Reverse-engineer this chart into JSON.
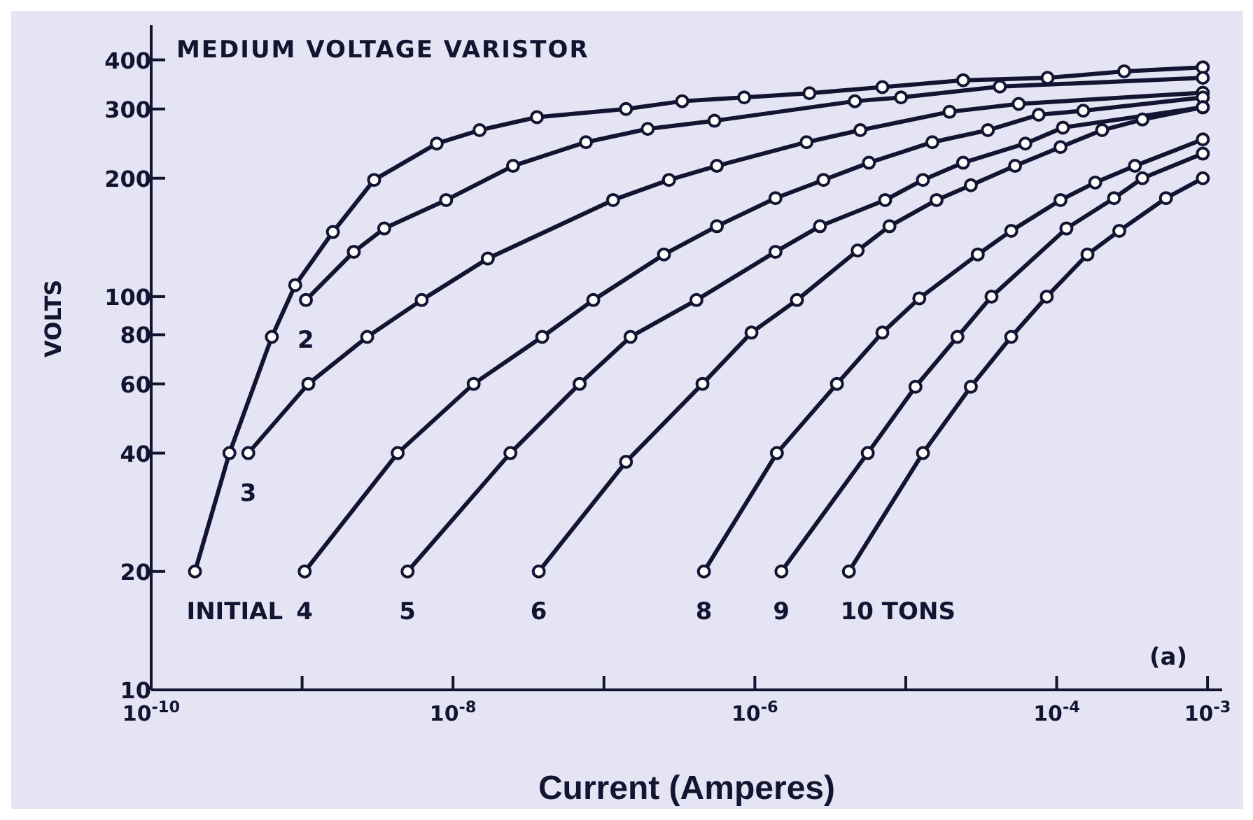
{
  "chart_data": {
    "type": "line",
    "title": "MEDIUM VOLTAGE VARISTOR",
    "xlabel": "Current (Amperes)",
    "ylabel": "VOLTS",
    "log": "xy",
    "marker": "circle",
    "line_style": "solid",
    "xlim": [
      1e-10,
      0.00125
    ],
    "ylim": [
      10,
      490
    ],
    "xticks": [
      {
        "value": 1e-10,
        "label": "10$^{-10}$"
      },
      {
        "value": 1e-09,
        "label": null
      },
      {
        "value": 1e-08,
        "label": "10$^{-8}$"
      },
      {
        "value": 1e-07,
        "label": null
      },
      {
        "value": 1e-06,
        "label": "10$^{-6}$"
      },
      {
        "value": 1e-05,
        "label": null
      },
      {
        "value": 0.0001,
        "label": "10$^{-4}$"
      },
      {
        "value": 0.001,
        "label": "10$^{-3}$"
      }
    ],
    "yticks": [
      10,
      20,
      40,
      60,
      80,
      100,
      200,
      300,
      400
    ],
    "series": [
      {
        "name": "INITIAL",
        "color": "#141432",
        "x": [
          1.95e-10,
          3.3e-10,
          6.3e-10,
          9e-10,
          1.6e-09,
          3e-09,
          7.8e-09,
          1.5e-08,
          3.6e-08,
          1.4e-07,
          3.3e-07,
          8.5e-07,
          2.3e-06,
          7e-06,
          2.4e-05,
          8.7e-05,
          0.00028,
          0.00093
        ],
        "values": [
          20,
          40,
          79,
          107,
          146,
          198,
          245,
          265,
          286,
          300,
          314,
          321,
          329,
          341,
          355,
          360,
          374,
          383
        ]
      },
      {
        "name": "2",
        "color": "#141432",
        "x": [
          1.06e-09,
          2.2e-09,
          3.5e-09,
          9e-09,
          2.5e-08,
          7.6e-08,
          1.95e-07,
          5.4e-07,
          4.6e-06,
          9.3e-06,
          4.2e-05,
          0.00093
        ],
        "values": [
          98,
          130,
          149,
          176,
          215,
          247,
          267,
          280,
          314,
          321,
          342,
          360
        ]
      },
      {
        "name": "3",
        "color": "#141432",
        "x": [
          4.4e-10,
          1.1e-09,
          2.7e-09,
          6.2e-09,
          1.7e-08,
          1.15e-07,
          2.7e-07,
          5.6e-07,
          2.2e-06,
          5e-06,
          1.95e-05,
          5.6e-05,
          0.00093
        ],
        "values": [
          40,
          60,
          79,
          98,
          125,
          176,
          198,
          215,
          247,
          265,
          295,
          309,
          330
        ]
      },
      {
        "name": "4",
        "color": "#141432",
        "x": [
          1.04e-09,
          4.3e-09,
          1.37e-08,
          3.9e-08,
          8.5e-08,
          2.5e-07,
          5.6e-07,
          1.37e-06,
          2.85e-06,
          5.7e-06,
          1.5e-05,
          3.5e-05,
          7.6e-05,
          0.00015,
          0.00093
        ],
        "values": [
          20,
          40,
          60,
          79,
          98,
          128,
          151,
          178,
          198,
          219,
          247,
          265,
          290,
          297,
          321
        ]
      },
      {
        "name": "5",
        "color": "#141432",
        "x": [
          5e-09,
          2.4e-08,
          6.9e-08,
          1.5e-07,
          4.1e-07,
          1.37e-06,
          2.7e-06,
          7.3e-06,
          1.3e-05,
          2.4e-05,
          6.2e-05,
          0.00011,
          0.00093
        ],
        "values": [
          20,
          40,
          60,
          79,
          98,
          130,
          151,
          176,
          198,
          219,
          245,
          269,
          303
        ]
      },
      {
        "name": "6",
        "color": "#141432",
        "x": [
          3.7e-08,
          1.4e-07,
          4.5e-07,
          9.5e-07,
          1.9e-06,
          4.8e-06,
          7.8e-06,
          1.6e-05,
          2.7e-05,
          5.3e-05,
          0.000106,
          0.0002,
          0.00037,
          0.00093
        ],
        "values": [
          20,
          38,
          60,
          81,
          98,
          131,
          151,
          176,
          192,
          215,
          240,
          265,
          282,
          303
        ]
      },
      {
        "name": "8",
        "color": "#141432",
        "x": [
          4.6e-07,
          1.4e-06,
          3.5e-06,
          7e-06,
          1.23e-05,
          3e-05,
          5e-05,
          0.000106,
          0.00018,
          0.00033,
          0.00093
        ],
        "values": [
          20,
          40,
          60,
          81,
          99,
          128,
          147,
          176,
          195,
          215,
          251
        ]
      },
      {
        "name": "9",
        "color": "#141432",
        "x": [
          1.5e-06,
          5.6e-06,
          1.16e-05,
          2.2e-05,
          3.7e-05,
          0.000116,
          0.00024,
          0.00037,
          0.00093
        ],
        "values": [
          20,
          40,
          59,
          79,
          100,
          149,
          178,
          200,
          231
        ]
      },
      {
        "name": "10 TONS",
        "color": "#141432",
        "x": [
          4.2e-06,
          1.3e-05,
          2.7e-05,
          5e-05,
          8.6e-05,
          0.00016,
          0.00026,
          0.00053,
          0.00093
        ],
        "values": [
          20,
          40,
          59,
          79,
          100,
          128,
          147,
          178,
          200
        ]
      }
    ],
    "annotations": [
      "(a)"
    ]
  }
}
